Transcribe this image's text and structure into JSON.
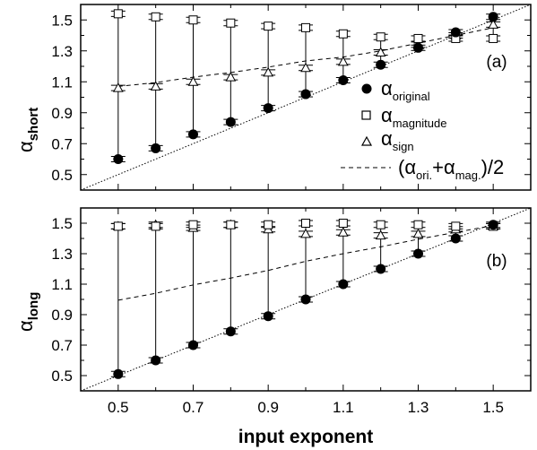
{
  "chart_data": [
    {
      "type": "scatter",
      "panel_label": "(a)",
      "ylabel": {
        "main": "α",
        "sub": "short"
      },
      "xlim": [
        0.4,
        1.6
      ],
      "ylim": [
        0.4,
        1.6
      ],
      "x_ticks": [
        "0.5",
        "0.7",
        "0.9",
        "1.1",
        "1.3",
        "1.5"
      ],
      "y_ticks": [
        "0.5",
        "0.7",
        "0.9",
        "1.1",
        "1.3",
        "1.5"
      ],
      "x": [
        0.5,
        0.6,
        0.7,
        0.8,
        0.9,
        1.0,
        1.1,
        1.2,
        1.3,
        1.4,
        1.5
      ],
      "series": [
        {
          "name": "α original",
          "marker": "filled-circle",
          "values": [
            0.6,
            0.67,
            0.76,
            0.84,
            0.93,
            1.02,
            1.11,
            1.21,
            1.32,
            1.42,
            1.52
          ]
        },
        {
          "name": "α magnitude",
          "marker": "open-square",
          "values": [
            1.54,
            1.52,
            1.5,
            1.48,
            1.46,
            1.45,
            1.41,
            1.39,
            1.38,
            1.38,
            1.38
          ]
        },
        {
          "name": "α sign",
          "marker": "open-triangle",
          "values": [
            1.06,
            1.07,
            1.1,
            1.13,
            1.16,
            1.19,
            1.23,
            1.29,
            1.34,
            1.4,
            1.47
          ]
        },
        {
          "name": "(α ori. + α mag.)/2",
          "style": "dashed",
          "values": [
            1.07,
            1.095,
            1.13,
            1.16,
            1.195,
            1.235,
            1.26,
            1.3,
            1.35,
            1.4,
            1.45
          ]
        }
      ],
      "diagonal": "y = x (dotted)",
      "legend": {
        "position": "right",
        "entries": [
          {
            "marker": "●",
            "main": "α",
            "sub": "original"
          },
          {
            "marker": "□",
            "main": "α",
            "sub": "magnitude"
          },
          {
            "marker": "△",
            "main": "α",
            "sub": "sign"
          },
          {
            "marker": "- - - -",
            "main": "(α",
            "sub1": "ori.",
            "mid": "+α",
            "sub2": "mag.",
            "tail": ")/2"
          }
        ]
      }
    },
    {
      "type": "scatter",
      "panel_label": "(b)",
      "ylabel": {
        "main": "α",
        "sub": "long"
      },
      "xlim": [
        0.4,
        1.6
      ],
      "ylim": [
        0.4,
        1.6
      ],
      "x_ticks": [
        "0.5",
        "0.7",
        "0.9",
        "1.1",
        "1.3",
        "1.5"
      ],
      "y_ticks": [
        "0.5",
        "0.7",
        "0.9",
        "1.1",
        "1.3",
        "1.5"
      ],
      "xlabel": "input exponent",
      "x": [
        0.5,
        0.6,
        0.7,
        0.8,
        0.9,
        1.0,
        1.1,
        1.2,
        1.3,
        1.4,
        1.5
      ],
      "series": [
        {
          "name": "α original",
          "marker": "filled-circle",
          "values": [
            0.51,
            0.6,
            0.7,
            0.79,
            0.89,
            1.0,
            1.1,
            1.2,
            1.3,
            1.4,
            1.49
          ]
        },
        {
          "name": "α magnitude",
          "marker": "open-square",
          "values": [
            1.48,
            1.48,
            1.49,
            1.49,
            1.49,
            1.5,
            1.5,
            1.49,
            1.49,
            1.48,
            1.48
          ]
        },
        {
          "name": "α sign",
          "marker": "open-triangle",
          "values": [
            1.48,
            1.49,
            1.47,
            1.49,
            1.46,
            1.43,
            1.44,
            1.42,
            1.43,
            1.46,
            1.48
          ]
        },
        {
          "name": "(α ori. + α mag.)/2",
          "style": "dashed",
          "values": [
            0.995,
            1.04,
            1.095,
            1.14,
            1.19,
            1.25,
            1.3,
            1.345,
            1.395,
            1.44,
            1.485
          ]
        }
      ],
      "diagonal": "y = x (dotted)"
    }
  ]
}
